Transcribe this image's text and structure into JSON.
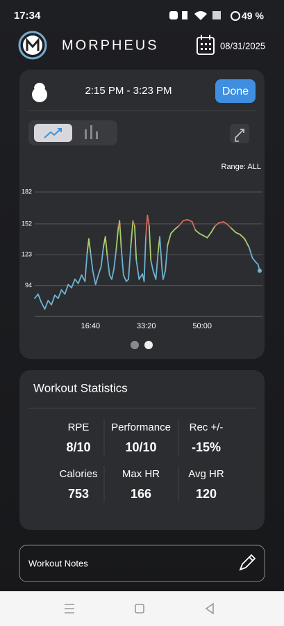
{
  "status_bar": {
    "time": "17:34",
    "battery": "49 %"
  },
  "header": {
    "app_name": "MORPHEUS",
    "date": "08/31/2025"
  },
  "workout": {
    "time_range": "2:15 PM - 3:23 PM",
    "done_button": "Done",
    "range_label": "Range:  ALL"
  },
  "chart_data": {
    "type": "line",
    "x": [
      0,
      60,
      120,
      180,
      240,
      300,
      360,
      420,
      480,
      540,
      600,
      660,
      720,
      780,
      840,
      900,
      940,
      970,
      1000,
      1040,
      1090,
      1140,
      1190,
      1230,
      1265,
      1300,
      1340,
      1380,
      1420,
      1460,
      1500,
      1520,
      1550,
      1590,
      1640,
      1680,
      1720,
      1760,
      1790,
      1820,
      1870,
      1930,
      1960,
      1990,
      2020,
      2050,
      2080,
      2120,
      2170,
      2210,
      2240,
      2280,
      2300,
      2340,
      2380,
      2440,
      2510,
      2580,
      2660,
      2740,
      2820,
      2880,
      2950,
      3020,
      3090,
      3160,
      3230,
      3300,
      3380,
      3440,
      3520,
      3600,
      3680,
      3760,
      3840,
      3900,
      3960,
      4000,
      4030
    ],
    "series": [
      {
        "values": [
          82,
          86,
          78,
          72,
          80,
          76,
          85,
          82,
          90,
          86,
          95,
          92,
          100,
          96,
          104,
          98,
          125,
          138,
          125,
          108,
          95,
          104,
          112,
          130,
          140,
          122,
          104,
          100,
          110,
          128,
          150,
          155,
          130,
          104,
          98,
          100,
          130,
          155,
          150,
          118,
          100,
          105,
          98,
          140,
          160,
          150,
          118,
          108,
          100,
          125,
          140,
          110,
          100,
          108,
          132,
          143,
          147,
          150,
          155,
          156,
          154,
          146,
          143,
          141,
          139,
          144,
          150,
          153,
          154,
          152,
          148,
          144,
          142,
          138,
          130,
          120,
          116,
          114,
          108
        ]
      }
    ],
    "zone_colors": [
      {
        "min": 150,
        "color": "#d66a5c"
      },
      {
        "min": 130,
        "color": "#a9cf6a"
      },
      {
        "min": 0,
        "color": "#6fb3d0"
      }
    ],
    "xlim": [
      0,
      4080
    ],
    "xticks": [
      {
        "value": 1000,
        "label": "16:40"
      },
      {
        "value": 2000,
        "label": "33:20"
      },
      {
        "value": 3000,
        "label": "50:00"
      }
    ],
    "ylim": [
      65,
      182
    ],
    "yticks": [
      94,
      123,
      152,
      182
    ],
    "grid": true
  },
  "statistics": {
    "title": "Workout Statistics",
    "items": [
      {
        "label": "RPE",
        "value": "8/10"
      },
      {
        "label": "Performance",
        "value": "10/10"
      },
      {
        "label": "Rec +/-",
        "value": "-15%"
      },
      {
        "label": "Calories",
        "value": "753"
      },
      {
        "label": "Max HR",
        "value": "166"
      },
      {
        "label": "Avg HR",
        "value": "120"
      }
    ]
  },
  "notes": {
    "placeholder": "Workout Notes"
  }
}
